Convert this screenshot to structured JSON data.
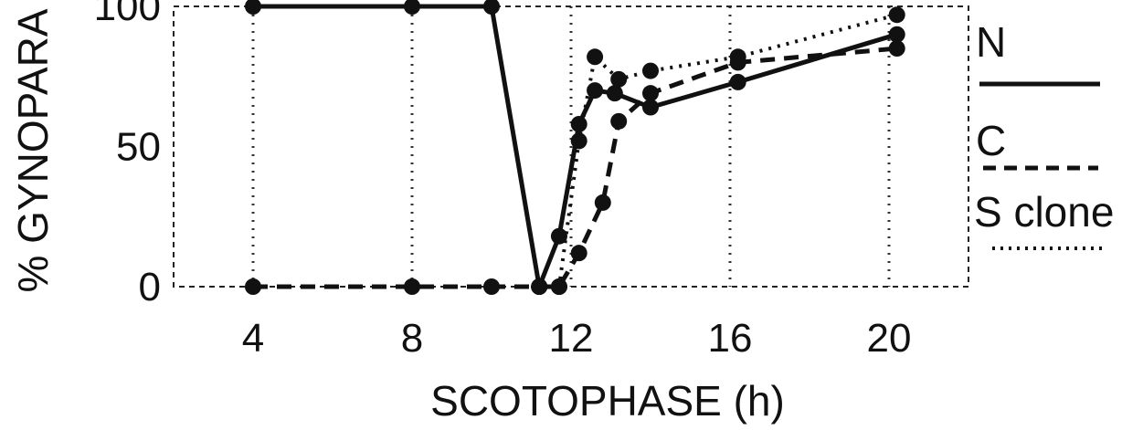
{
  "chart_data": {
    "type": "line",
    "xlabel": "SCOTOPHASE (h)",
    "ylabel": "% GYNOPARA",
    "xlim": [
      2,
      22
    ],
    "ylim": [
      0,
      100
    ],
    "x_ticks": [
      4,
      8,
      12,
      16,
      20
    ],
    "y_ticks": [
      0,
      50,
      100
    ],
    "x_tick_labels": [
      "4",
      "8",
      "12",
      "16",
      "20"
    ],
    "y_tick_labels": [
      "0",
      "50",
      "100"
    ],
    "grid": "vertical dotted lines at sampled scotophases",
    "legend_placement": "right",
    "legend": [
      {
        "label": "N",
        "style": "solid"
      },
      {
        "label": "C",
        "style": "dashed"
      },
      {
        "label": "S clone",
        "style": "dotted"
      }
    ],
    "series": [
      {
        "style": "solid",
        "x": [
          4,
          8,
          10,
          11.2,
          11.7,
          12.2,
          12.6,
          13.1,
          14,
          16.2,
          20.2
        ],
        "y": [
          100,
          100,
          100,
          0,
          18,
          58,
          70,
          69,
          64,
          73,
          90
        ]
      },
      {
        "style": "dashed",
        "x": [
          4,
          8,
          10,
          11.2,
          11.7,
          12.2,
          12.8,
          13.2,
          14,
          16.2,
          20.2
        ],
        "y": [
          0,
          0,
          0,
          0,
          0,
          12,
          30,
          59,
          69,
          80,
          85
        ]
      },
      {
        "style": "dotted",
        "x": [
          11.2,
          11.7,
          12.2,
          12.6,
          13.2,
          14,
          16.2,
          20.2
        ],
        "y": [
          0,
          0,
          52,
          82,
          74,
          77,
          82,
          97
        ]
      }
    ]
  }
}
